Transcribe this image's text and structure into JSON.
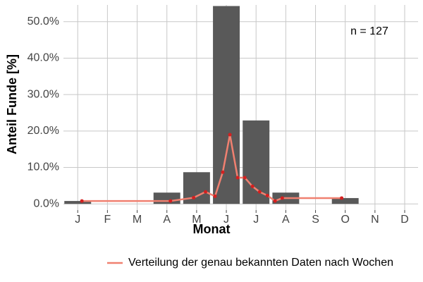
{
  "chart_data": {
    "type": "bar",
    "ylabel": "Anteil Funde [%]",
    "xlabel": "Monat",
    "annotation": "n = 127",
    "categories": [
      "J",
      "F",
      "M",
      "A",
      "M",
      "J",
      "J",
      "A",
      "S",
      "O",
      "N",
      "D"
    ],
    "values": [
      0.8,
      0,
      0,
      3.1,
      8.7,
      54.3,
      22.9,
      3.1,
      0,
      1.6,
      0,
      0
    ],
    "color": "#595959",
    "xlim": [
      0.52,
      12.45
    ],
    "ylim": [
      -1.7,
      54.6
    ],
    "yticks": [
      {
        "value": 0,
        "label": "0.0%"
      },
      {
        "value": 10,
        "label": "10.0%"
      },
      {
        "value": 20,
        "label": "20.0%"
      },
      {
        "value": 30,
        "label": "30.0%"
      },
      {
        "value": 40,
        "label": "40.0%"
      },
      {
        "value": 50,
        "label": "50.0%"
      }
    ],
    "grid": true,
    "legend": "bottom",
    "line": {
      "name": "Verteilung der genau bekannten Daten nach Wochen",
      "color": "#f08070",
      "point_color": "#d42020",
      "x": [
        1.14,
        4.12,
        4.9,
        5.3,
        5.62,
        5.88,
        6.12,
        6.38,
        6.62,
        6.88,
        7.12,
        7.38,
        7.64,
        7.88,
        9.88
      ],
      "values": [
        0.8,
        0.8,
        1.7,
        3.3,
        2.1,
        8.7,
        19.0,
        7.2,
        7.2,
        4.8,
        3.3,
        2.3,
        0.8,
        1.6,
        1.6
      ]
    }
  }
}
